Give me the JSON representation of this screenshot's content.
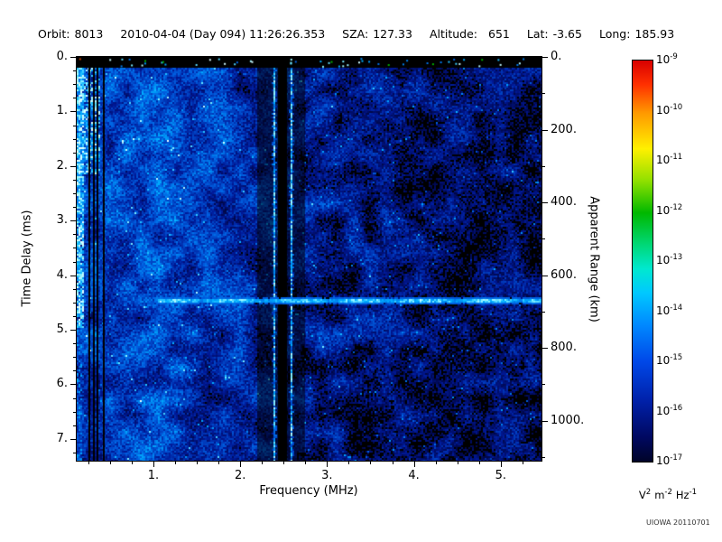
{
  "header": {
    "orbit_label": "Orbit:",
    "orbit_value": "8013",
    "datetime": "2010-04-04 (Day 094) 11:26:26.353",
    "sza_label": "SZA:",
    "sza_value": "127.33",
    "altitude_label": "Altitude:",
    "altitude_value": "651",
    "lat_label": "Lat:",
    "lat_value": "-3.65",
    "long_label": "Long:",
    "long_value": "185.93"
  },
  "chart_data": {
    "type": "heatmap",
    "description": "Radar sounder ionogram spectrogram: signal spectral density vs frequency and time delay",
    "x_axis": {
      "label": "Frequency (MHz)",
      "min": 0.117,
      "max": 5.47,
      "minor_step": 0.25,
      "major_ticks": [
        1,
        2,
        3,
        4,
        5
      ],
      "tick_labels": [
        "1.",
        "2.",
        "3.",
        "4.",
        "5."
      ]
    },
    "y_axis": {
      "label": "Time Delay (ms)",
      "min": 0,
      "max": 7.4,
      "minor_step": 0.25,
      "major_ticks": [
        0,
        1,
        2,
        3,
        4,
        5,
        6,
        7
      ],
      "tick_labels": [
        "0.",
        "1.",
        "2.",
        "3.",
        "4.",
        "5.",
        "6.",
        "7."
      ]
    },
    "y2_axis": {
      "label": "Apparent Range (km)",
      "min": 0,
      "max": 1110,
      "minor_step": 100,
      "major_ticks": [
        0,
        200,
        400,
        600,
        800,
        1000
      ],
      "tick_labels": [
        "0.",
        "200.",
        "400.",
        "600.",
        "800.",
        "1000."
      ]
    },
    "colorbar": {
      "mantissa": "10",
      "tick_exponents": [
        -9,
        -10,
        -11,
        -12,
        -13,
        -14,
        -15,
        -16,
        -17
      ],
      "unit_parts": [
        [
          "V",
          "2"
        ],
        [
          "m",
          "-2"
        ],
        [
          "Hz",
          "-1"
        ]
      ],
      "unit_plain": "V^2 m^-2 Hz^-1",
      "gradient": [
        {
          "pos": 0.0,
          "color": "#d80000"
        },
        {
          "pos": 0.06,
          "color": "#ff3000"
        },
        {
          "pos": 0.13,
          "color": "#ff9800"
        },
        {
          "pos": 0.22,
          "color": "#fff000"
        },
        {
          "pos": 0.3,
          "color": "#90e000"
        },
        {
          "pos": 0.38,
          "color": "#00b800"
        },
        {
          "pos": 0.46,
          "color": "#00d878"
        },
        {
          "pos": 0.52,
          "color": "#00e8d0"
        },
        {
          "pos": 0.58,
          "color": "#00c8ff"
        },
        {
          "pos": 0.66,
          "color": "#0088ff"
        },
        {
          "pos": 0.75,
          "color": "#0048e8"
        },
        {
          "pos": 0.85,
          "color": "#0020a8"
        },
        {
          "pos": 0.94,
          "color": "#000860"
        },
        {
          "pos": 1.0,
          "color": "#000428"
        }
      ]
    },
    "features": {
      "top_blank_band_ms": [
        0,
        0.18
      ],
      "ionosphere_echo": {
        "freq_range_mhz": [
          0.12,
          0.45
        ],
        "time_range_ms": [
          0.2,
          2.0
        ]
      },
      "surface_echo": {
        "time_delay_ms": 4.45,
        "freq_range_mhz": [
          1.05,
          5.47
        ]
      },
      "interference_lines_mhz": [
        2.38,
        2.58
      ],
      "interference_gap_mhz": [
        2.44,
        2.54
      ],
      "interference_dark_region_mhz": [
        2.2,
        2.75
      ],
      "low_freq_dark_bands_mhz": [
        0.25,
        0.3,
        0.35,
        0.42
      ],
      "noise_character": "dense blue speckle, brighter at low frequency, black dropout patches increasing toward high frequency"
    },
    "render": {
      "seed": 1234567,
      "palette": [
        {
          "pos": 0.0,
          "rgb": [
            0,
            0,
            40
          ]
        },
        {
          "pos": 0.25,
          "rgb": [
            0,
            24,
            150
          ]
        },
        {
          "pos": 0.5,
          "rgb": [
            0,
            95,
            225
          ]
        },
        {
          "pos": 0.7,
          "rgb": [
            0,
            175,
            255
          ]
        },
        {
          "pos": 0.85,
          "rgb": [
            130,
            240,
            255
          ]
        },
        {
          "pos": 1.0,
          "rgb": [
            235,
            255,
            255
          ]
        }
      ]
    }
  },
  "watermark": "UIOWA 20110701"
}
